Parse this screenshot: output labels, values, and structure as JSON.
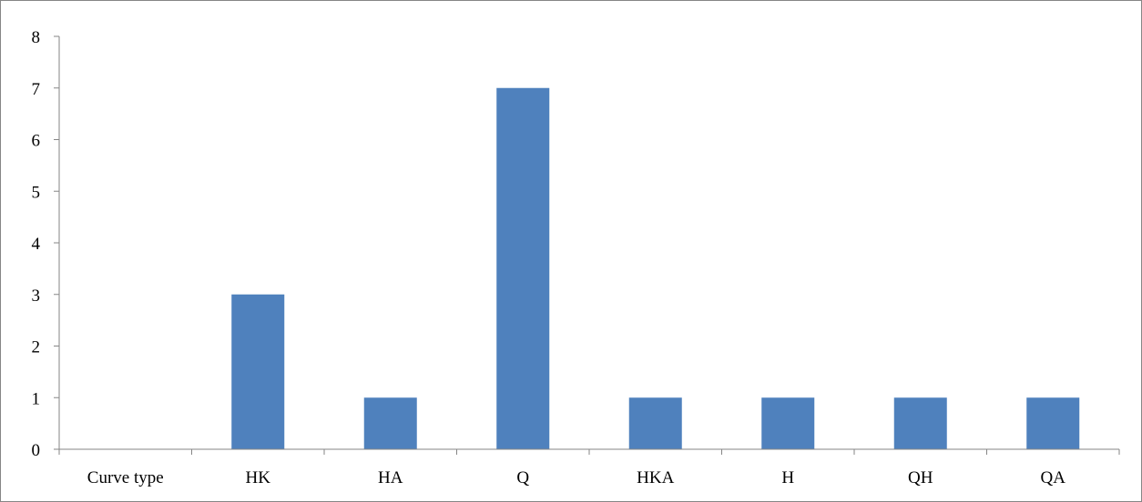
{
  "chart_data": {
    "type": "bar",
    "categories": [
      "Curve type",
      "HK",
      "HA",
      "Q",
      "HKA",
      "H",
      "QH",
      "QA"
    ],
    "values": [
      0,
      3,
      1,
      7,
      1,
      1,
      1,
      1
    ],
    "title": "",
    "xlabel": "",
    "ylabel": "",
    "ylim": [
      0,
      8
    ],
    "yticks": [
      0,
      1,
      2,
      3,
      4,
      5,
      6,
      7,
      8
    ],
    "grid": false,
    "legend": "none",
    "colors": {
      "bar": "#4f81bd",
      "axis": "#868686",
      "border": "#868686",
      "text": "#000000"
    }
  }
}
